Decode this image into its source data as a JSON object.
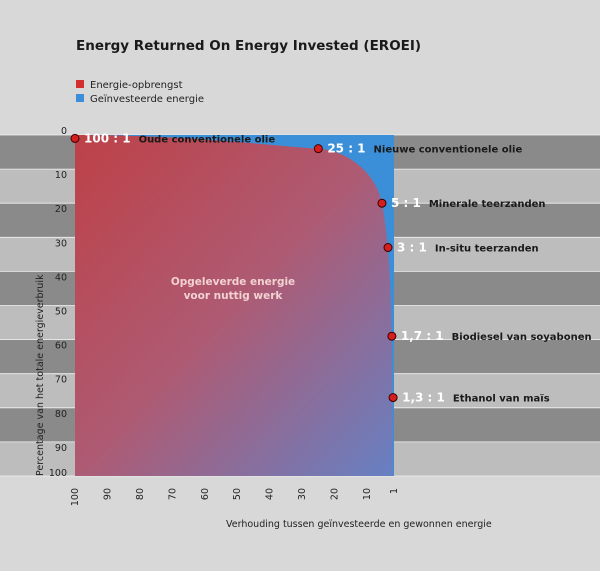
{
  "chart_data": {
    "type": "area",
    "title": "Energy Returned On Energy Invested (EROEI)",
    "xlabel": "Verhouding tussen geïnvesteerde en gewonnen energie",
    "ylabel": "Percentage van het totale energieverbruik",
    "legend": {
      "placement": "top-left",
      "items": [
        {
          "label": "Energie-opbrengst",
          "color": "#d32f2f"
        },
        {
          "label": "Geïnvesteerde energie",
          "color": "#3a8fd8"
        }
      ]
    },
    "x_ticks": [
      100,
      90,
      80,
      70,
      60,
      50,
      40,
      30,
      20,
      10,
      1
    ],
    "xlim": [
      100,
      1
    ],
    "y_ticks": [
      0,
      10,
      20,
      30,
      40,
      50,
      60,
      70,
      80,
      90,
      100
    ],
    "ylim": [
      0,
      100
    ],
    "area_label": [
      "Opgeleverde energie",
      "voor nuttig werk"
    ],
    "points": [
      {
        "ratio_label": "100 : 1",
        "name": "Oude conventionele olie",
        "x": 100,
        "y": 1
      },
      {
        "ratio_label": "25 : 1",
        "name": "Nieuwe conventionele olie",
        "x": 25,
        "y": 4
      },
      {
        "ratio_label": "5 : 1",
        "name": "Minerale teerzanden",
        "x": 5,
        "y": 20
      },
      {
        "ratio_label": "3 : 1",
        "name": "In-situ teerzanden",
        "x": 3,
        "y": 33
      },
      {
        "ratio_label": "1,7 : 1",
        "name": "Biodiesel van soyabonen",
        "x": 1.7,
        "y": 59
      },
      {
        "ratio_label": "1,3 : 1",
        "name": "Ethanol van maïs",
        "x": 1.3,
        "y": 77
      }
    ],
    "colors": {
      "background": "#d8d8d8",
      "band_dark": "#8a8a8a",
      "band_light": "#bdbdbd",
      "output": "#d32f2f",
      "invested": "#3a8fd8",
      "marker": "#d61e1e"
    }
  }
}
